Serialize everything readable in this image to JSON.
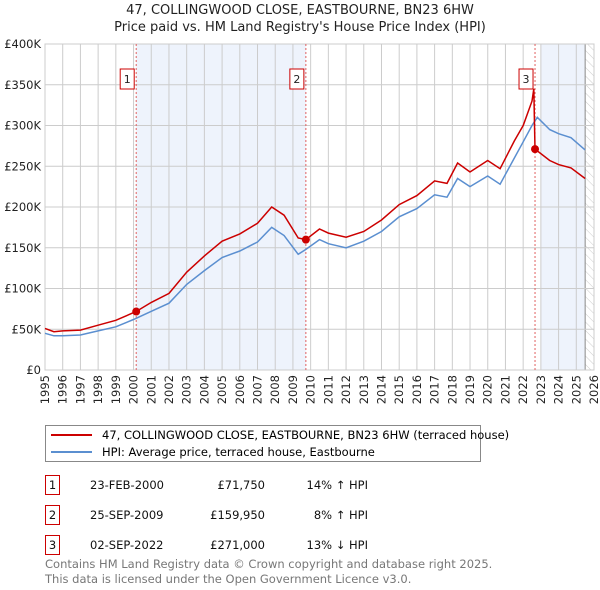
{
  "title_line1": "47, COLLINGWOOD CLOSE, EASTBOURNE, BN23 6HW",
  "title_line2": "Price paid vs. HM Land Registry's House Price Index (HPI)",
  "colors": {
    "property": "#cc0000",
    "hpi": "#5b8fd0",
    "shade": "#eef3fc",
    "grid": "#cccccc"
  },
  "chart_data": {
    "type": "line",
    "xlim": [
      1995,
      2026
    ],
    "ylim": [
      0,
      400000
    ],
    "yticks": [
      0,
      50000,
      100000,
      150000,
      200000,
      250000,
      300000,
      350000,
      400000
    ],
    "ytick_labels": [
      "£0",
      "£50K",
      "£100K",
      "£150K",
      "£200K",
      "£250K",
      "£300K",
      "£350K",
      "£400K"
    ],
    "xticks": [
      1995,
      1996,
      1997,
      1998,
      1999,
      2000,
      2001,
      2002,
      2003,
      2004,
      2005,
      2006,
      2007,
      2008,
      2009,
      2010,
      2011,
      2012,
      2013,
      2014,
      2015,
      2016,
      2017,
      2018,
      2019,
      2020,
      2021,
      2022,
      2023,
      2024,
      2025,
      2026
    ],
    "xtick_labels": [
      "1995",
      "1996",
      "1997",
      "1998",
      "1999",
      "2000",
      "2001",
      "2002",
      "2003",
      "2004",
      "2005",
      "2006",
      "2007",
      "2008",
      "2009",
      "2010",
      "2011",
      "2012",
      "2013",
      "2014",
      "2015",
      "2016",
      "2017",
      "2018",
      "2019",
      "2020",
      "2021",
      "2022",
      "2023",
      "2024",
      "2025",
      "2026"
    ],
    "grid": true,
    "shaded_ranges": [
      [
        2000.15,
        2009.73
      ],
      [
        2023.0,
        2025.5
      ]
    ],
    "future_hatch_from": 2025.5,
    "series": [
      {
        "name": "47, COLLINGWOOD CLOSE, EASTBOURNE, BN23 6HW (terraced house)",
        "color": "#cc0000",
        "x": [
          1995,
          1995.5,
          1996,
          1997,
          1998,
          1999,
          2000.15,
          2001,
          2002,
          2003,
          2004,
          2005,
          2006,
          2007,
          2007.8,
          2008.5,
          2009.3,
          2009.73,
          2010.5,
          2011,
          2012,
          2013,
          2014,
          2015,
          2016,
          2017,
          2017.7,
          2018.3,
          2019,
          2020,
          2020.7,
          2021.5,
          2022,
          2022.5,
          2022.6,
          2022.67,
          2023.5,
          2024,
          2024.7,
          2025.5
        ],
        "y": [
          51000,
          47000,
          48000,
          49000,
          55000,
          61000,
          71750,
          83000,
          94000,
          120000,
          140000,
          158000,
          167000,
          180000,
          200000,
          190000,
          162000,
          159950,
          173000,
          168000,
          163000,
          170000,
          184000,
          203000,
          214000,
          232000,
          229000,
          254000,
          243000,
          257000,
          247000,
          281000,
          300000,
          330000,
          345000,
          271000,
          257000,
          252000,
          248000,
          235000
        ]
      },
      {
        "name": "HPI: Average price, terraced house, Eastbourne",
        "color": "#5b8fd0",
        "x": [
          1995,
          1995.5,
          1996,
          1997,
          1998,
          1999,
          2000,
          2001,
          2002,
          2003,
          2004,
          2005,
          2006,
          2007,
          2007.8,
          2008.5,
          2009.3,
          2009.73,
          2010.5,
          2011,
          2012,
          2013,
          2014,
          2015,
          2016,
          2017,
          2017.7,
          2018.3,
          2019,
          2020,
          2020.7,
          2021.5,
          2022,
          2022.5,
          2022.8,
          2023.5,
          2024,
          2024.7,
          2025.5
        ],
        "y": [
          45000,
          42000,
          42000,
          43000,
          48000,
          53000,
          62000,
          72000,
          82000,
          105000,
          122000,
          138000,
          146000,
          157000,
          175000,
          165000,
          142000,
          148000,
          160000,
          155000,
          150000,
          158000,
          170000,
          188000,
          198000,
          215000,
          212000,
          235000,
          225000,
          238000,
          228000,
          260000,
          280000,
          300000,
          310000,
          295000,
          290000,
          285000,
          270000
        ]
      }
    ],
    "sales": [
      {
        "label": "1",
        "x": 2000.15,
        "y": 71750
      },
      {
        "label": "2",
        "x": 2009.73,
        "y": 159950
      },
      {
        "label": "3",
        "x": 2022.67,
        "y": 271000
      }
    ]
  },
  "legend": {
    "property": "47, COLLINGWOOD CLOSE, EASTBOURNE, BN23 6HW (terraced house)",
    "hpi": "HPI: Average price, terraced house, Eastbourne"
  },
  "transactions": [
    {
      "num": "1",
      "date": "23-FEB-2000",
      "price": "£71,750",
      "hpi": "14% ↑ HPI"
    },
    {
      "num": "2",
      "date": "25-SEP-2009",
      "price": "£159,950",
      "hpi": "8% ↑ HPI"
    },
    {
      "num": "3",
      "date": "02-SEP-2022",
      "price": "£271,000",
      "hpi": "13% ↓ HPI"
    }
  ],
  "footer": {
    "line1": "Contains HM Land Registry data © Crown copyright and database right 2025.",
    "line2": "This data is licensed under the Open Government Licence v3.0."
  }
}
